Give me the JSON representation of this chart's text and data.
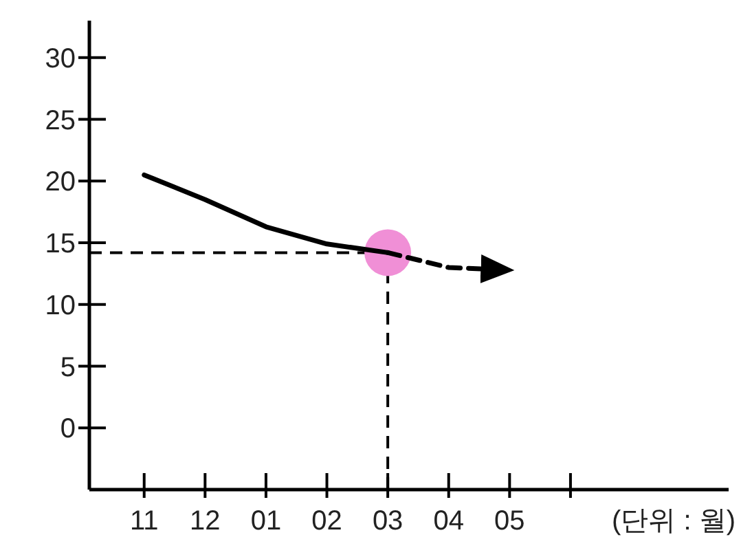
{
  "chart_data": {
    "type": "line",
    "xlabel": "(단위 : 월)",
    "ylim": [
      -5,
      33
    ],
    "categories": [
      "11",
      "12",
      "01",
      "02",
      "03",
      "04",
      "05",
      null
    ],
    "yticks": [
      0,
      5,
      10,
      15,
      20,
      25,
      30
    ],
    "grid": false,
    "series": [
      {
        "color": "#000000",
        "line_style": "solid",
        "values": [
          20.5,
          18.5,
          16.3,
          14.9,
          14.2,
          null,
          null,
          null
        ]
      },
      {
        "type": "line",
        "color": "#000000",
        "line_style": "dashed",
        "values": [
          null,
          null,
          null,
          null,
          14.2,
          13.0,
          12.8,
          null
        ]
      },
      {
        "type": "scatter",
        "color": "#f08fd6",
        "marker": "circle",
        "values": [
          null,
          null,
          null,
          null,
          14.2,
          null,
          null,
          null
        ]
      }
    ],
    "ref_lines": [
      {
        "axis": "y",
        "value": 14.2,
        "line_style": "dashed"
      },
      {
        "axis": "x",
        "value": "03",
        "line_style": "dashed"
      }
    ]
  }
}
